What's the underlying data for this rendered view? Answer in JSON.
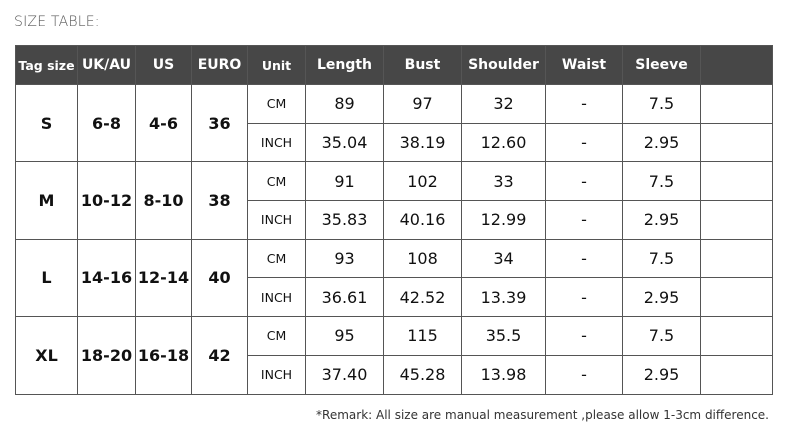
{
  "title": "SIZE TABLE:",
  "headers": [
    "Tag size",
    "UK/AU",
    "US",
    "EURO",
    "Unit",
    "Length",
    "Bust",
    "Shoulder",
    "Waist",
    "Sleeve",
    ""
  ],
  "rows": [
    {
      "tag": "S",
      "uk": "6-8",
      "us": "4-6",
      "euro": "36",
      "cm": {
        "unit": "CM",
        "length": "89",
        "bust": "97",
        "shoulder": "32",
        "waist": "-",
        "sleeve": "7.5"
      },
      "inch": {
        "unit": "INCH",
        "length": "35.04",
        "bust": "38.19",
        "shoulder": "12.60",
        "waist": "-",
        "sleeve": "2.95"
      }
    },
    {
      "tag": "M",
      "uk": "10-12",
      "us": "8-10",
      "euro": "38",
      "cm": {
        "unit": "CM",
        "length": "91",
        "bust": "102",
        "shoulder": "33",
        "waist": "-",
        "sleeve": "7.5"
      },
      "inch": {
        "unit": "INCH",
        "length": "35.83",
        "bust": "40.16",
        "shoulder": "12.99",
        "waist": "-",
        "sleeve": "2.95"
      }
    },
    {
      "tag": "L",
      "uk": "14-16",
      "us": "12-14",
      "euro": "40",
      "cm": {
        "unit": "CM",
        "length": "93",
        "bust": "108",
        "shoulder": "34",
        "waist": "-",
        "sleeve": "7.5"
      },
      "inch": {
        "unit": "INCH",
        "length": "36.61",
        "bust": "42.52",
        "shoulder": "13.39",
        "waist": "-",
        "sleeve": "2.95"
      }
    },
    {
      "tag": "XL",
      "uk": "18-20",
      "us": "16-18",
      "euro": "42",
      "cm": {
        "unit": "CM",
        "length": "95",
        "bust": "115",
        "shoulder": "35.5",
        "waist": "-",
        "sleeve": "7.5"
      },
      "inch": {
        "unit": "INCH",
        "length": "37.40",
        "bust": "45.28",
        "shoulder": "13.98",
        "waist": "-",
        "sleeve": "2.95"
      }
    }
  ],
  "remark": "*Remark: All size are manual measurement ,please allow 1-3cm difference."
}
